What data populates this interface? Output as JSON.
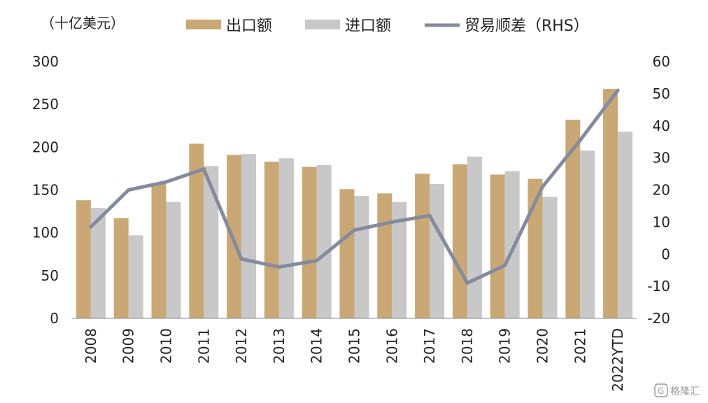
{
  "chart_data": {
    "type": "bar",
    "unit_label": "（十亿美元）",
    "categories": [
      "2008",
      "2009",
      "2010",
      "2011",
      "2012",
      "2013",
      "2014",
      "2015",
      "2016",
      "2017",
      "2018",
      "2019",
      "2020",
      "2021",
      "2022YTD"
    ],
    "series": [
      {
        "name": "出口额",
        "type": "bar",
        "axis": "left",
        "color": "#c9a876",
        "values": [
          138,
          117,
          158,
          204,
          191,
          183,
          177,
          151,
          146,
          169,
          180,
          168,
          163,
          232,
          268
        ]
      },
      {
        "name": "进口额",
        "type": "bar",
        "axis": "left",
        "color": "#c8c8c8",
        "values": [
          129,
          97,
          136,
          178,
          192,
          187,
          179,
          143,
          136,
          157,
          189,
          172,
          142,
          196,
          218
        ]
      },
      {
        "name": "贸易顺差（RHS）",
        "type": "line",
        "axis": "right",
        "color": "#858a9c",
        "values": [
          8.5,
          20,
          22.5,
          26.5,
          -1.5,
          -4,
          -2,
          7.5,
          10,
          12,
          -9,
          -3.5,
          21,
          35.5,
          51
        ]
      }
    ],
    "ylim_left": [
      0,
      300
    ],
    "yticks_left": [
      0,
      50,
      100,
      150,
      200,
      250,
      300
    ],
    "ylim_right": [
      -20,
      60
    ],
    "yticks_right": [
      -20,
      -10,
      0,
      10,
      20,
      30,
      40,
      50,
      60
    ],
    "legend_position": "top-center",
    "grid": false
  },
  "watermark": "格隆汇"
}
